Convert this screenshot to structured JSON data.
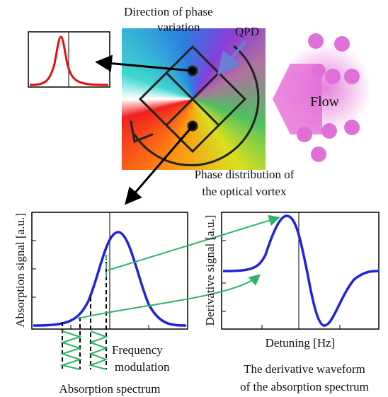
{
  "labels": {
    "phase_direction": [
      "Direction of phase",
      "variation"
    ],
    "qpd": "QPD",
    "flow": "Flow",
    "phase_distribution": [
      "Phase distribution of",
      "the optical vortex"
    ],
    "absorption_axis": "Absorption signal [a.u.]",
    "derivative_axis": "Derivative signal [a.u.]",
    "detuning_axis": "Detuning [Hz]",
    "frequency_modulation": [
      "Frequency",
      "modulation"
    ],
    "absorption_caption": "Absorption spectrum",
    "derivative_caption": [
      "The derivative waveform",
      "of the absorption spectrum"
    ]
  }
}
